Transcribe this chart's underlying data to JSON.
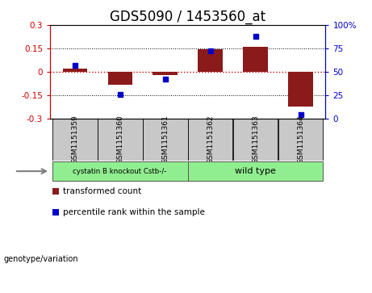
{
  "title": "GDS5090 / 1453560_at",
  "samples": [
    "GSM1151359",
    "GSM1151360",
    "GSM1151361",
    "GSM1151362",
    "GSM1151363",
    "GSM1151364"
  ],
  "bar_values": [
    0.02,
    -0.08,
    -0.02,
    0.145,
    0.16,
    -0.22
  ],
  "percentile_values": [
    57,
    26,
    42,
    72,
    88,
    5
  ],
  "ylim": [
    -0.3,
    0.3
  ],
  "yticks": [
    -0.3,
    -0.15,
    0.0,
    0.15,
    0.3
  ],
  "ytick_labels": [
    "-0.3",
    "-0.15",
    "0",
    "0.15",
    "0.3"
  ],
  "y2lim": [
    0,
    100
  ],
  "y2ticks": [
    0,
    25,
    50,
    75,
    100
  ],
  "y2tick_labels": [
    "0",
    "25",
    "50",
    "75",
    "100%"
  ],
  "bar_color": "#8B1A1A",
  "dot_color": "#0000CD",
  "hline_color": "#CC0000",
  "grid_color": "#000000",
  "group1_label": "cystatin B knockout Cstb-/-",
  "group2_label": "wild type",
  "group_color": "#90EE90",
  "genotype_label": "genotype/variation",
  "legend_items": [
    {
      "color": "#8B1A1A",
      "label": "transformed count"
    },
    {
      "color": "#0000CD",
      "label": "percentile rank within the sample"
    }
  ],
  "bg_color": "#FFFFFF",
  "plot_bg": "#FFFFFF",
  "sample_box_color": "#C8C8C8",
  "title_fontsize": 12,
  "tick_fontsize": 7.5,
  "sample_fontsize": 6.5,
  "legend_fontsize": 7.5
}
